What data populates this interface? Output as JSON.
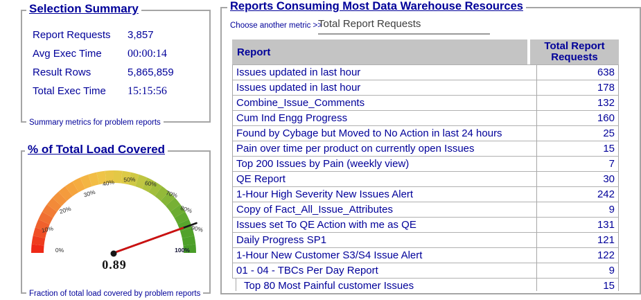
{
  "colors": {
    "navy_text": "#000099",
    "panel_border": "#a5a5a5",
    "table_header_bg": "#c4c4c4",
    "needle_red": "#cc1111",
    "gauge_stops": [
      "#ee2012",
      "#ef5f2c",
      "#f28c3a",
      "#f6a83f",
      "#f0c447",
      "#dcca46",
      "#a8c03c",
      "#79b135",
      "#55a42c",
      "#479c27"
    ]
  },
  "selection_summary": {
    "title": "Selection Summary",
    "metrics": [
      {
        "label": "Report Requests",
        "value": "3,857"
      },
      {
        "label": "Avg Exec Time",
        "value": "00:00:14"
      },
      {
        "label": "Result Rows",
        "value": "5,865,859"
      },
      {
        "label": "Total Exec Time",
        "value": "15:15:56"
      }
    ],
    "caption": "Summary metrics for problem reports"
  },
  "load_gauge": {
    "title": "% of Total Load Covered",
    "caption": "Fraction of total load covered by problem reports",
    "value": 0.89,
    "value_label": "0.89",
    "ticks": [
      "0%",
      "10%",
      "20%",
      "30%",
      "40%",
      "50%",
      "60%",
      "70%",
      "80%",
      "90%",
      "100%"
    ]
  },
  "reports_panel": {
    "title": "Reports Consuming Most Data Warehouse Resources",
    "metric_prompt": "Choose another metric >>",
    "metric_selected": "Total Report Requests",
    "columns": {
      "report": "Report",
      "value": "Total Report Requests"
    },
    "rows": [
      {
        "report": "Issues updated in last hour",
        "value": "638"
      },
      {
        "report": "Issues updated in last hour",
        "value": "178"
      },
      {
        "report": "Combine_Issue_Comments",
        "value": "132"
      },
      {
        "report": "Cum Ind Engg Progress",
        "value": "160"
      },
      {
        "report": "Found by Cybage but Moved to No Action in last 24 hours",
        "value": "25"
      },
      {
        "report": "Pain over time per product on currently open Issues",
        "value": "15"
      },
      {
        "report": "Top 200 Issues by Pain (weekly view)",
        "value": "7"
      },
      {
        "report": "QE Report",
        "value": "30"
      },
      {
        "report": "1-Hour High Severity New Issues Alert",
        "value": "242"
      },
      {
        "report": "Copy of Fact_All_Issue_Attributes",
        "value": "9"
      },
      {
        "report": "Issues set To QE Action with me as QE",
        "value": "131"
      },
      {
        "report": "Daily Progress SP1",
        "value": "121"
      },
      {
        "report": "1-Hour New Customer S3/S4 Issue Alert",
        "value": "122"
      },
      {
        "report": "01 - 04 - TBCs Per Day Report",
        "value": "9"
      },
      {
        "report": "Top 80 Most Painful customer Issues",
        "value": "15"
      }
    ]
  },
  "chart_data": {
    "type": "gauge",
    "title": "% of Total Load Covered",
    "min": 0,
    "max": 1,
    "value": 0.89,
    "value_label": "0.89",
    "tick_labels": [
      "0%",
      "10%",
      "20%",
      "30%",
      "40%",
      "50%",
      "60%",
      "70%",
      "80%",
      "90%",
      "100%"
    ],
    "color_scale": "red-to-green semicircle"
  }
}
